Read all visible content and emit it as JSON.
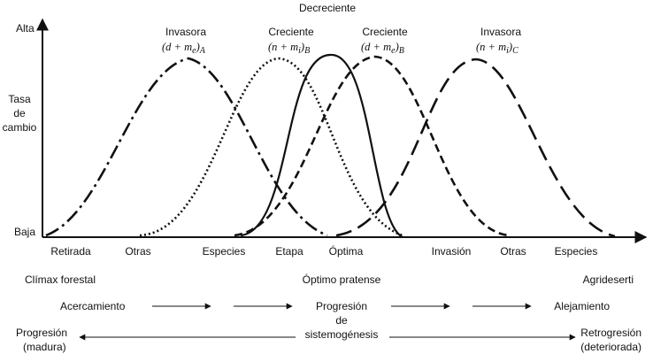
{
  "top_label": "Decreciente",
  "y_axis": {
    "top": "Alta",
    "mid": [
      "Tasa",
      "de",
      "cambio"
    ],
    "bottom": "Baja"
  },
  "curves": [
    {
      "id": "A",
      "title": "Invasora",
      "formula": "(d + m",
      "sub": "e",
      "group": "A",
      "style": "dashdot"
    },
    {
      "id": "B1",
      "title": "Creciente",
      "formula": "(n + m",
      "sub": "i",
      "group": "B",
      "style": "dotted"
    },
    {
      "id": "peak",
      "title": "",
      "formula": "",
      "sub": "",
      "group": "",
      "style": "solid"
    },
    {
      "id": "B2",
      "title": "Creciente",
      "formula": "(d + m",
      "sub": "e",
      "group": "B",
      "style": "dashed"
    },
    {
      "id": "C",
      "title": "Invasora",
      "formula": "(n + m",
      "sub": "i",
      "group": "C",
      "style": "longdash"
    }
  ],
  "x_labels": [
    "Retirada",
    "Otras",
    "Especies",
    "Etapa",
    "Óptima",
    "Invasión",
    "Otras",
    "Especies"
  ],
  "stage_row": {
    "left": "Clímax forestal",
    "center": "Óptimo pratense",
    "right": "Agrideserti"
  },
  "approach_row": {
    "left": "Acercamiento",
    "center": [
      "Progresión",
      "de",
      "sistemogénesis"
    ],
    "right": "Alejamiento"
  },
  "progression_row": {
    "left": [
      "Progresión",
      "(madura)"
    ],
    "right": [
      "Retrogresión",
      "(deteriorada)"
    ]
  }
}
